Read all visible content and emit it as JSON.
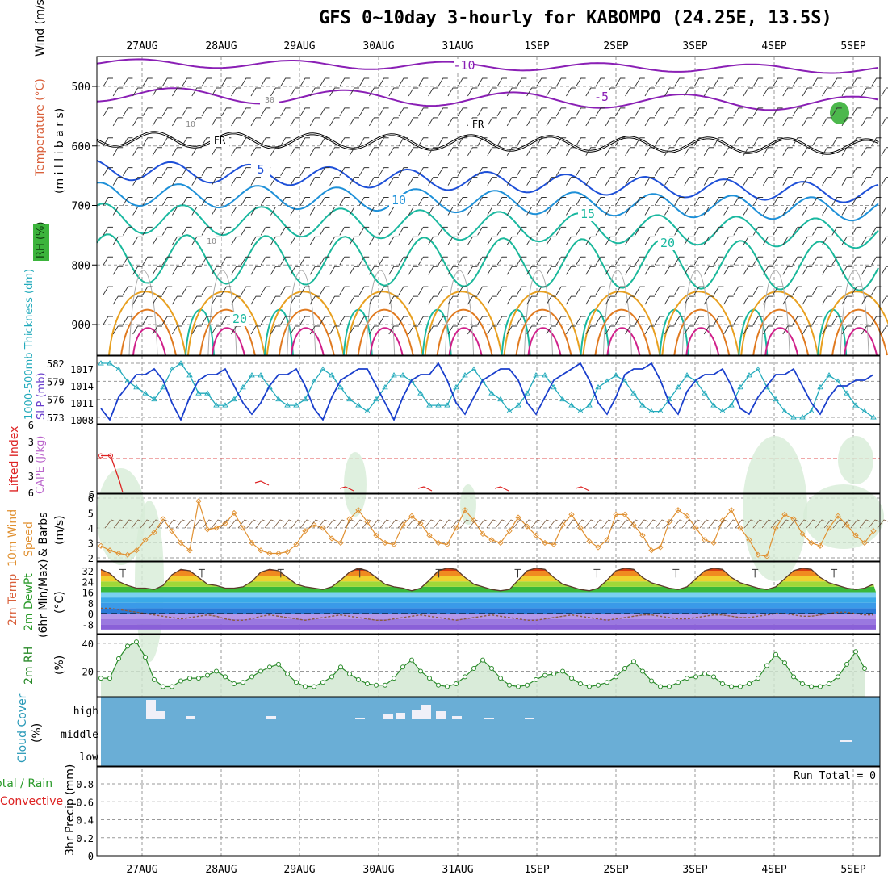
{
  "title": "GFS 0~10day 3-hourly for KABOMPO (24.25E, 13.5S)",
  "colors": {
    "wind_label": "#000000",
    "temperature_label": "#d9603b",
    "rh_label": "#2a9a2a",
    "thickness": "#22aabb",
    "slp": "#1a3fcc",
    "cape": "#bb66cc",
    "lifted_index": "#dd2222",
    "wind10m": "#e09030",
    "temp_fill_hot": "#d83a10",
    "rh2m": "#2a8a2a",
    "cloud_bg": "#6aaed6",
    "precip_total": "#2a9a2a",
    "precip_conv": "#dd2222"
  },
  "x_axis": {
    "date_labels": [
      "27AUG",
      "28AUG",
      "29AUG",
      "30AUG",
      "31AUG",
      "1SEP",
      "2SEP",
      "3SEP",
      "4SEP",
      "5SEP"
    ],
    "start_hour_before_first_label": 12,
    "hours_per_day": 24
  },
  "panels": {
    "upper": {
      "ylabels": [
        "Wind (m/s)",
        "Temperature (°C)",
        "RH (%)",
        "(millibars)"
      ],
      "wind_label": "Wind (m/s)",
      "temp_label": "Temperature (°C)",
      "rh_label": "RH (%)",
      "unit_label": "(m i l l i b a r s)",
      "yticks": [
        500,
        600,
        700,
        800,
        900
      ],
      "contour_labels": [
        "-10",
        "-5",
        "FR",
        "FR",
        "5",
        "10",
        "15",
        "20",
        "20",
        "30",
        "10",
        "10"
      ]
    },
    "slp": {
      "ylabel_left": "1000-500mb Thickness (dm)",
      "ylabel_right": "SLP (mb)",
      "thickness_ticks": [
        582,
        579,
        576,
        573
      ],
      "slp_ticks": [
        1017,
        1014,
        1011,
        1008
      ]
    },
    "cape": {
      "ylabel_left": "Lifted Index",
      "ylabel_right": "CAPE (J/kg)",
      "yticks": [
        -6,
        -3,
        0,
        3,
        6
      ],
      "ytick_labels": [
        "6",
        "3",
        "0",
        "3",
        "6"
      ]
    },
    "wind10m": {
      "ylabel1": "10m Wind",
      "ylabel2": "Speed",
      "ylabel3": "& Barbs",
      "ylabel4": "(m/s)",
      "yticks": [
        2,
        3,
        4,
        5,
        6
      ]
    },
    "temp2m": {
      "ylabel1": "2m Temp",
      "ylabel2": "2m DewPt",
      "ylabel3": "(6hr Min/Max)",
      "ylabel4": "(°C)",
      "yticks": [
        32,
        24,
        16,
        8,
        0,
        -8
      ]
    },
    "rh2m": {
      "ylabel1": "2m RH",
      "ylabel2": "(%)",
      "yticks": [
        40,
        20
      ]
    },
    "cloud": {
      "ylabel1": "Cloud Cover",
      "ylabel2": "(%)",
      "levels": [
        "high",
        "middle",
        "low"
      ]
    },
    "precip": {
      "ylabel1": "Total / Rain",
      "ylabel2": "Convective",
      "ylabel3": "3hr Precip (mm)",
      "yticks": [
        0,
        0.2,
        0.4,
        0.6,
        0.8
      ],
      "run_total": "Run Total = 0"
    }
  },
  "chart_data": [
    {
      "type": "line",
      "panel": "1000-500mb thickness and SLP",
      "x_unit": "3-hourly steps from 26AUG 12Z",
      "series": [
        {
          "name": "1000-500mb Thickness (dm)",
          "axis": "left",
          "values": [
            582,
            582,
            581,
            579,
            578,
            577,
            576,
            578,
            581,
            582,
            580,
            577,
            577,
            575,
            575,
            576,
            578,
            580,
            580,
            578,
            576,
            575,
            575,
            576,
            579,
            581,
            580,
            578,
            576,
            575,
            574,
            576,
            578,
            580,
            580,
            579,
            577,
            575,
            575,
            575,
            578,
            580,
            581,
            579,
            577,
            576,
            574,
            575,
            577,
            580,
            580,
            578,
            576,
            575,
            574,
            575,
            578,
            579,
            580,
            579,
            577,
            575,
            574,
            574,
            576,
            578,
            580,
            579,
            577,
            575,
            574,
            575,
            578,
            580,
            581,
            578,
            576,
            574,
            573,
            573,
            574,
            578,
            580,
            579,
            577,
            575,
            574,
            573,
            573
          ]
        },
        {
          "name": "SLP (mb)",
          "axis": "right",
          "values": [
            1010,
            1008,
            1012,
            1014,
            1016,
            1016,
            1017,
            1015,
            1011,
            1008,
            1012,
            1015,
            1016,
            1016,
            1017,
            1014,
            1011,
            1009,
            1011,
            1014,
            1016,
            1016,
            1017,
            1014,
            1010,
            1008,
            1012,
            1015,
            1016,
            1017,
            1017,
            1014,
            1011,
            1008,
            1012,
            1015,
            1016,
            1016,
            1018,
            1015,
            1011,
            1009,
            1012,
            1015,
            1016,
            1017,
            1017,
            1015,
            1011,
            1009,
            1012,
            1015,
            1016,
            1017,
            1018,
            1015,
            1011,
            1009,
            1012,
            1016,
            1017,
            1017,
            1018,
            1015,
            1011,
            1009,
            1013,
            1015,
            1016,
            1016,
            1017,
            1014,
            1010,
            1009,
            1012,
            1014,
            1016,
            1016,
            1017,
            1014,
            1011,
            1009,
            1012,
            1014,
            1014,
            1015,
            1015,
            1016,
            1017
          ]
        }
      ]
    },
    {
      "type": "line",
      "panel": "Lifted Index",
      "series": [
        {
          "name": "Lifted Index",
          "x_steps": [
            0,
            1,
            2,
            3
          ],
          "values": [
            -0.5,
            -0.5,
            4,
            6
          ]
        }
      ]
    },
    {
      "type": "line",
      "panel": "10m Wind Speed (m/s)",
      "values": [
        2.8,
        2.5,
        2.3,
        2.2,
        2.5,
        3.2,
        3.7,
        4.6,
        3.8,
        3.0,
        2.5,
        5.8,
        3.9,
        4.0,
        4.3,
        5.0,
        4.0,
        3.0,
        2.5,
        2.3,
        2.3,
        2.4,
        2.9,
        3.8,
        4.2,
        4.0,
        3.3,
        3.0,
        4.6,
        5.2,
        4.4,
        3.5,
        3.0,
        2.9,
        4.2,
        4.8,
        4.3,
        3.5,
        3.0,
        2.9,
        4.0,
        5.2,
        4.5,
        3.6,
        3.2,
        3.0,
        3.8,
        4.7,
        4.1,
        3.5,
        3.0,
        2.9,
        4.2,
        4.9,
        4.0,
        3.1,
        2.7,
        3.2,
        4.9,
        4.9,
        4.2,
        3.5,
        2.5,
        2.7,
        4.4,
        5.2,
        4.8,
        4.0,
        3.2,
        3.0,
        4.5,
        5.2,
        4.0,
        3.2,
        2.2,
        2.1,
        4.0,
        4.9,
        4.6,
        3.6,
        3.0,
        2.8,
        4.0,
        4.8,
        4.2,
        3.5,
        3.0,
        3.8,
        5.1
      ]
    },
    {
      "type": "area",
      "panel": "2m Temperature and Dew Point (°C)",
      "series": [
        {
          "name": "2m Temp",
          "values": [
            33,
            30,
            24,
            21,
            19,
            19,
            18,
            21,
            29,
            33,
            32,
            27,
            22,
            21,
            19,
            19,
            20,
            24,
            31,
            33,
            32,
            27,
            22,
            20,
            19,
            18,
            20,
            25,
            31,
            34,
            32,
            27,
            22,
            20,
            19,
            17,
            19,
            25,
            32,
            34,
            33,
            27,
            22,
            20,
            18,
            17,
            18,
            25,
            32,
            34,
            33,
            27,
            22,
            20,
            18,
            17,
            19,
            25,
            32,
            34,
            33,
            27,
            23,
            21,
            19,
            18,
            20,
            26,
            32,
            34,
            33,
            27,
            23,
            21,
            19,
            18,
            20,
            26,
            32,
            34,
            33,
            27,
            23,
            21,
            19,
            18,
            19,
            22,
            24
          ]
        },
        {
          "name": "2m DewPt",
          "values": [
            4,
            4,
            3,
            2,
            1,
            0,
            -1,
            -2,
            -3,
            -4,
            -3,
            -2,
            -1,
            -2,
            -4,
            -5,
            -5,
            -4,
            -2,
            -1,
            -2,
            -3,
            -4,
            -5,
            -4,
            -3,
            -2,
            -1,
            -2,
            -3,
            -4,
            -5,
            -5,
            -4,
            -3,
            -2,
            -1,
            -2,
            -3,
            -4,
            -5,
            -4,
            -3,
            -2,
            -1,
            -2,
            -3,
            -4,
            -5,
            -5,
            -4,
            -3,
            -2,
            -1,
            -2,
            -3,
            -4,
            -5,
            -4,
            -3,
            -2,
            -1,
            -1,
            -2,
            -3,
            -4,
            -4,
            -3,
            -2,
            -1,
            -1,
            -2,
            -3,
            -3,
            -2,
            -1,
            0,
            0,
            -1,
            -2,
            -2,
            -1,
            0,
            1,
            1,
            0,
            -1,
            -1,
            0
          ]
        }
      ]
    },
    {
      "type": "area",
      "panel": "2m RH (%)",
      "values": [
        15,
        15,
        29,
        38,
        41,
        30,
        14,
        9,
        9,
        13,
        15,
        15,
        17,
        20,
        16,
        11,
        12,
        16,
        20,
        23,
        25,
        18,
        12,
        9,
        9,
        12,
        16,
        23,
        18,
        14,
        11,
        10,
        10,
        15,
        23,
        28,
        20,
        15,
        10,
        9,
        11,
        16,
        22,
        28,
        22,
        15,
        10,
        9,
        10,
        14,
        17,
        18,
        20,
        15,
        11,
        9,
        10,
        12,
        16,
        22,
        27,
        20,
        13,
        9,
        9,
        12,
        15,
        16,
        18,
        16,
        11,
        9,
        9,
        11,
        15,
        24,
        32,
        26,
        16,
        11,
        9,
        9,
        11,
        16,
        25,
        34,
        22
      ]
    },
    {
      "type": "bar",
      "panel": "3hr Precip (mm)",
      "values": [
        0
      ],
      "ylim": [
        0,
        0.9
      ]
    }
  ]
}
